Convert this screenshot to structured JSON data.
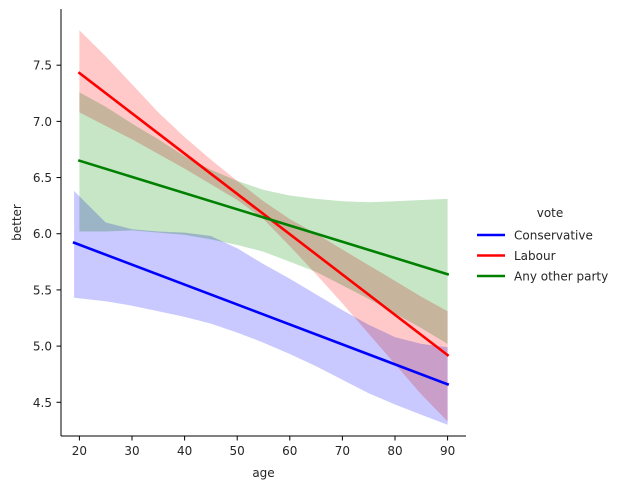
{
  "chart_data": {
    "type": "line",
    "xlabel": "age",
    "ylabel": "better",
    "xlim": [
      16.5,
      93.5
    ],
    "ylim": [
      4.2,
      8.0
    ],
    "xticks": [
      20,
      30,
      40,
      50,
      60,
      70,
      80,
      90
    ],
    "yticks": [
      4.5,
      5.0,
      5.5,
      6.0,
      6.5,
      7.0,
      7.5
    ],
    "xtick_labels": [
      "20",
      "30",
      "40",
      "50",
      "60",
      "70",
      "80",
      "90"
    ],
    "ytick_labels": [
      "4.5",
      "5.0",
      "5.5",
      "6.0",
      "6.5",
      "7.0",
      "7.5"
    ],
    "grid": false,
    "legend": {
      "title": "vote",
      "placement": "right"
    },
    "series": [
      {
        "name": "Conservative",
        "color": "#0000ff",
        "band_color": "#c9c9ff",
        "line": {
          "x": [
            19,
            90
          ],
          "y": [
            5.92,
            4.66
          ]
        },
        "ci": {
          "x": [
            19,
            25,
            30,
            35,
            40,
            45,
            50,
            55,
            60,
            65,
            70,
            75,
            80,
            85,
            90
          ],
          "lower": [
            5.43,
            5.4,
            5.36,
            5.31,
            5.26,
            5.2,
            5.12,
            5.03,
            4.93,
            4.82,
            4.7,
            4.58,
            4.48,
            4.39,
            4.3
          ],
          "upper": [
            6.38,
            6.1,
            6.04,
            6.02,
            6.01,
            5.98,
            5.87,
            5.73,
            5.6,
            5.46,
            5.32,
            5.19,
            5.08,
            5.02,
            4.99
          ]
        }
      },
      {
        "name": "Labour",
        "color": "#ff0000",
        "band_color": "#ffc9c9",
        "line": {
          "x": [
            20,
            90
          ],
          "y": [
            7.43,
            4.92
          ]
        },
        "ci": {
          "x": [
            20,
            25,
            30,
            35,
            40,
            45,
            50,
            55,
            60,
            65,
            70,
            75,
            80,
            85,
            90
          ],
          "lower": [
            7.08,
            6.96,
            6.84,
            6.71,
            6.58,
            6.44,
            6.3,
            6.13,
            5.89,
            5.64,
            5.38,
            5.11,
            4.84,
            4.57,
            4.33
          ],
          "upper": [
            7.81,
            7.58,
            7.33,
            7.08,
            6.86,
            6.66,
            6.47,
            6.29,
            6.13,
            6.0,
            5.86,
            5.72,
            5.58,
            5.44,
            5.31
          ]
        }
      },
      {
        "name": "Any other party",
        "color": "#008000",
        "band_color": "#c6e6c6",
        "line": {
          "x": [
            20,
            90
          ],
          "y": [
            6.65,
            5.64
          ]
        },
        "ci": {
          "x": [
            20,
            25,
            30,
            35,
            40,
            45,
            50,
            55,
            60,
            65,
            70,
            75,
            80,
            85,
            90
          ],
          "lower": [
            6.02,
            6.02,
            6.03,
            6.01,
            5.99,
            5.95,
            5.9,
            5.84,
            5.75,
            5.66,
            5.54,
            5.42,
            5.29,
            5.16,
            5.02
          ],
          "upper": [
            7.26,
            7.13,
            6.98,
            6.84,
            6.69,
            6.57,
            6.47,
            6.39,
            6.34,
            6.31,
            6.29,
            6.28,
            6.29,
            6.3,
            6.31
          ]
        }
      }
    ]
  }
}
